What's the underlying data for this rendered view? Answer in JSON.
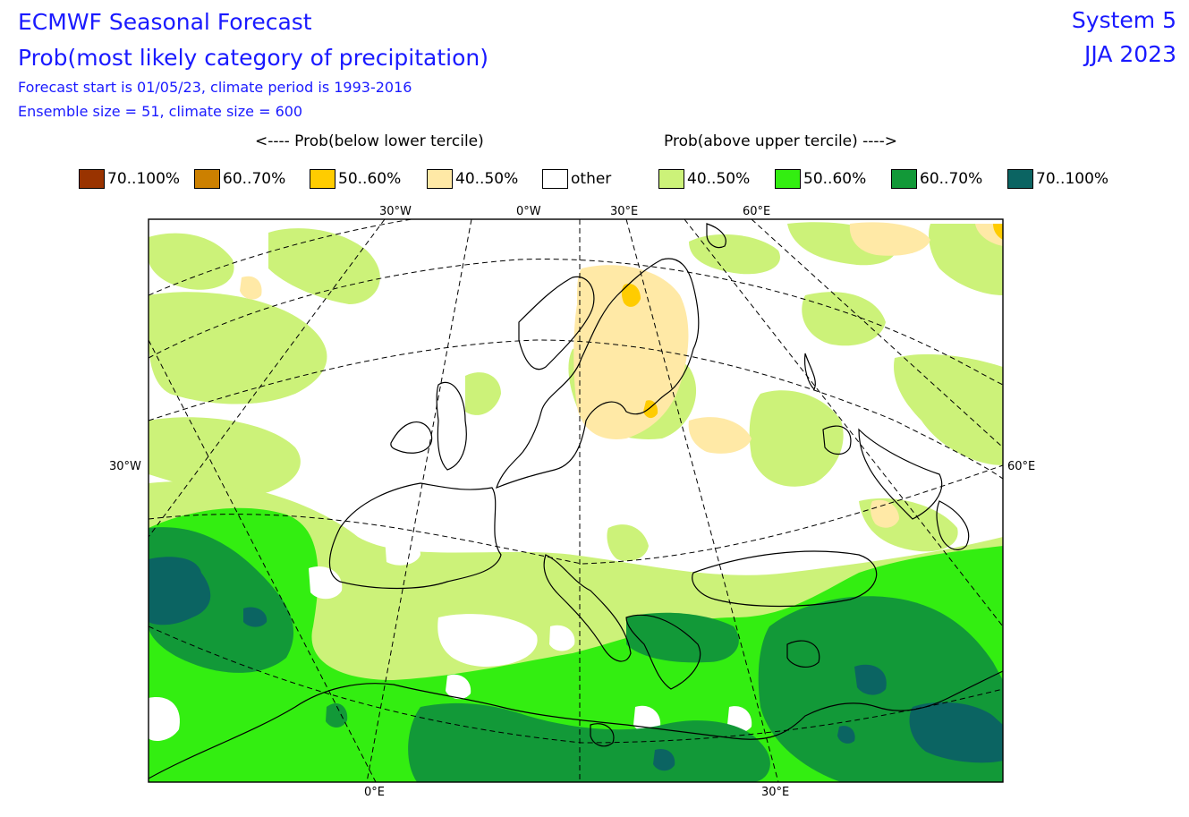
{
  "header": {
    "title_line1": "ECMWF Seasonal Forecast",
    "title_line2": "Prob(most likely category of precipitation)",
    "info_line1": "Forecast start is 01/05/23, climate period is 1993-2016",
    "info_line2": "Ensemble size = 51, climate size = 600",
    "system": "System 5",
    "season": "JJA 2023"
  },
  "legend": {
    "below_caption": "<---- Prob(below lower tercile)",
    "above_caption": "Prob(above upper tercile) ---->",
    "items": [
      {
        "label": "70..100%",
        "color": "#993300"
      },
      {
        "label": "60..70%",
        "color": "#cc8000"
      },
      {
        "label": "50..60%",
        "color": "#ffcc00"
      },
      {
        "label": "40..50%",
        "color": "#ffe9a6"
      },
      {
        "label": "other",
        "color": "#ffffff"
      },
      {
        "label": "40..50%",
        "color": "#ccf279"
      },
      {
        "label": "50..60%",
        "color": "#33ee11"
      },
      {
        "label": "60..70%",
        "color": "#129938"
      },
      {
        "label": "70..100%",
        "color": "#0b6462"
      }
    ]
  },
  "map_labels": {
    "top_30w": "30°W",
    "top_0w": "0°W",
    "top_30e": "30°E",
    "top_60e": "60°E",
    "left_30w": "30°W",
    "right_60e": "60°E",
    "bottom_0e": "0°E",
    "bottom_30e": "30°E"
  }
}
